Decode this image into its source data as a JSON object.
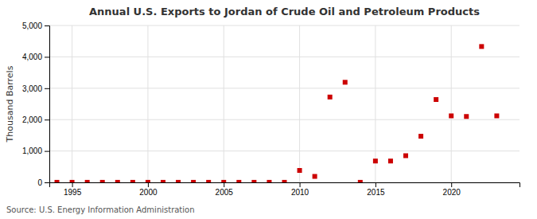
{
  "chart_data": {
    "type": "scatter",
    "title": "Annual U.S. Exports to Jordan of Crude Oil and Petroleum Products",
    "ylabel": "Thousand Barrels",
    "annotations": [
      "Source: U.S. Energy Information Administration"
    ],
    "x": [
      1994,
      1995,
      1996,
      1997,
      1998,
      1999,
      2000,
      2001,
      2002,
      2003,
      2004,
      2005,
      2006,
      2007,
      2008,
      2009,
      2010,
      2011,
      2012,
      2013,
      2014,
      2015,
      2016,
      2017,
      2018,
      2019,
      2020,
      2021,
      2022,
      2023
    ],
    "values": [
      2,
      2,
      2,
      2,
      2,
      2,
      2,
      2,
      2,
      2,
      2,
      2,
      2,
      2,
      2,
      2,
      380,
      190,
      2720,
      3190,
      2,
      680,
      680,
      850,
      1470,
      2640,
      2120,
      2100,
      4330,
      2120
    ],
    "color": "#cc0000",
    "marker": "square",
    "xlim": [
      1993.5,
      2024.5
    ],
    "xticks": [
      1995,
      2000,
      2005,
      2010,
      2015,
      2020
    ],
    "ylim": [
      0,
      5000
    ],
    "yticks": [
      0,
      {
        "value": 1000,
        "label": "1,000"
      },
      {
        "value": 2000,
        "label": "2,000"
      },
      {
        "value": 3000,
        "label": "3,000"
      },
      {
        "value": 4000,
        "label": "4,000"
      },
      {
        "value": 5000,
        "label": "5,000"
      }
    ],
    "grid": true
  }
}
